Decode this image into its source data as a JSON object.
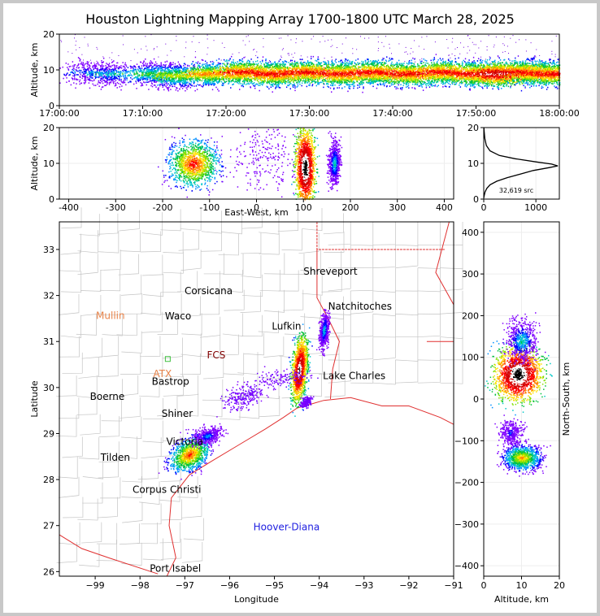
{
  "title": "Houston Lightning Mapping Array 1700-1800 UTC March 28, 2025",
  "source_count_label": "32,619 src",
  "chart_data": [
    {
      "panel": "time-altitude",
      "type": "scatter",
      "xlabel": "",
      "ylabel": "Altitude, km",
      "x_ticks": [
        "17:00:00",
        "17:10:00",
        "17:20:00",
        "17:30:00",
        "17:40:00",
        "17:50:00",
        "18:00:00"
      ],
      "xlim": [
        "17:00:00",
        "18:00:00"
      ],
      "ylim": [
        0,
        20
      ],
      "y_ticks": [
        0,
        10,
        20
      ],
      "density": [
        {
          "t_min": 3,
          "alt": 9.5,
          "w": 1.0
        },
        {
          "t_min": 6,
          "alt": 9,
          "w": 1.5
        },
        {
          "t_min": 11,
          "alt": 9,
          "w": 2
        },
        {
          "t_min": 14,
          "alt": 8.5,
          "w": 2.5
        },
        {
          "t_min": 18,
          "alt": 9,
          "w": 3
        },
        {
          "t_min": 22,
          "alt": 9.5,
          "w": 3.5
        },
        {
          "t_min": 26,
          "alt": 9,
          "w": 3.5
        },
        {
          "t_min": 30,
          "alt": 9.5,
          "w": 3.5
        },
        {
          "t_min": 34,
          "alt": 9,
          "w": 3.5
        },
        {
          "t_min": 38,
          "alt": 9.5,
          "w": 3.5
        },
        {
          "t_min": 42,
          "alt": 9,
          "w": 3.5
        },
        {
          "t_min": 46,
          "alt": 9.5,
          "w": 3.5
        },
        {
          "t_min": 50,
          "alt": 9,
          "w": 3.5
        },
        {
          "t_min": 53,
          "alt": 9,
          "w": 4
        },
        {
          "t_min": 56,
          "alt": 9.5,
          "w": 3.5
        },
        {
          "t_min": 59,
          "alt": 9,
          "w": 3.5
        }
      ]
    },
    {
      "panel": "east-west-altitude",
      "type": "scatter",
      "xlabel": "East-West, km",
      "ylabel": "Altitude, km",
      "xlim": [
        -420,
        420
      ],
      "ylim": [
        0,
        20
      ],
      "x_ticks": [
        -400,
        -300,
        -200,
        -100,
        0,
        100,
        200,
        300,
        400
      ],
      "y_ticks": [
        0,
        10,
        20
      ],
      "clusters": [
        {
          "x": -135,
          "alt": 10,
          "sx": 25,
          "salt": 3,
          "w": 3
        },
        {
          "x": 15,
          "alt": 12,
          "sx": 45,
          "salt": 5,
          "w": 0.6
        },
        {
          "x": 103,
          "alt": 9,
          "sx": 10,
          "salt": 5,
          "w": 4
        },
        {
          "x": 165,
          "alt": 10,
          "sx": 6,
          "salt": 3,
          "w": 1.5
        }
      ]
    },
    {
      "panel": "altitude-histogram",
      "type": "line",
      "xlim": [
        0,
        1450
      ],
      "ylim": [
        0,
        20
      ],
      "x_ticks": [
        0,
        1000
      ],
      "y_ticks": [
        0,
        10,
        20
      ],
      "points": [
        [
          0,
          0.3
        ],
        [
          10,
          1
        ],
        [
          25,
          2
        ],
        [
          60,
          3
        ],
        [
          120,
          4
        ],
        [
          250,
          5
        ],
        [
          450,
          6
        ],
        [
          700,
          7
        ],
        [
          950,
          8
        ],
        [
          1250,
          8.8
        ],
        [
          1420,
          9.3
        ],
        [
          1300,
          9.8
        ],
        [
          1000,
          10.4
        ],
        [
          600,
          11.3
        ],
        [
          300,
          12.2
        ],
        [
          120,
          13.5
        ],
        [
          50,
          15
        ],
        [
          20,
          17
        ],
        [
          8,
          19
        ],
        [
          3,
          20
        ]
      ]
    },
    {
      "panel": "map",
      "type": "scatter",
      "xlabel": "Longitude",
      "ylabel": "Latitude",
      "xlim": [
        -99.8,
        -91.0
      ],
      "ylim": [
        25.9,
        33.6
      ],
      "x_ticks": [
        -99,
        -98,
        -97,
        -96,
        -95,
        -94,
        -93,
        -92,
        -91
      ],
      "y_ticks": [
        26,
        27,
        28,
        29,
        30,
        31,
        32,
        33
      ],
      "cities": [
        {
          "name": "Shreveport",
          "lon": -93.75,
          "lat": 32.52,
          "color": "#000000"
        },
        {
          "name": "Corsicana",
          "lon": -96.47,
          "lat": 32.1,
          "color": "#000000"
        },
        {
          "name": "Natchitoches",
          "lon": -93.09,
          "lat": 31.76,
          "color": "#000000"
        },
        {
          "name": "Mullin",
          "lon": -98.66,
          "lat": 31.56,
          "color": "#e8844a"
        },
        {
          "name": "Waco",
          "lon": -97.15,
          "lat": 31.55,
          "color": "#000000"
        },
        {
          "name": "Lufkin",
          "lon": -94.73,
          "lat": 31.33,
          "color": "#000000"
        },
        {
          "name": "ATX",
          "lon": -97.5,
          "lat": 30.3,
          "color": "#e8844a"
        },
        {
          "name": "Bastrop",
          "lon": -97.32,
          "lat": 30.13,
          "color": "#000000"
        },
        {
          "name": "Lake Charles",
          "lon": -93.22,
          "lat": 30.25,
          "color": "#000000"
        },
        {
          "name": "Boerne",
          "lon": -98.73,
          "lat": 29.8,
          "color": "#000000"
        },
        {
          "name": "Shiner",
          "lon": -97.17,
          "lat": 29.43,
          "color": "#000000"
        },
        {
          "name": "Victoria",
          "lon": -97.0,
          "lat": 28.82,
          "color": "#000000"
        },
        {
          "name": "Tilden",
          "lon": -98.55,
          "lat": 28.48,
          "color": "#000000"
        },
        {
          "name": "Corpus Christi",
          "lon": -97.4,
          "lat": 27.78,
          "color": "#000000"
        },
        {
          "name": "Hoover-Diana",
          "lon": -94.73,
          "lat": 26.97,
          "color": "#2020e0"
        },
        {
          "name": "Port Isabel",
          "lon": -97.21,
          "lat": 26.07,
          "color": "#000000"
        },
        {
          "name": "FCS",
          "lon": -96.3,
          "lat": 30.7,
          "color": "#800000"
        }
      ],
      "clusters": [
        {
          "lon": -94.45,
          "lat": 30.4,
          "slon": 0.08,
          "slat": 0.35,
          "w": 4
        },
        {
          "lon": -93.9,
          "lat": 31.25,
          "slon": 0.05,
          "slat": 0.2,
          "w": 1.5
        },
        {
          "lon": -96.9,
          "lat": 28.55,
          "slon": 0.2,
          "slat": 0.18,
          "w": 3
        },
        {
          "lon": -96.5,
          "lat": 28.95,
          "slon": 0.15,
          "slat": 0.1,
          "w": 1.2
        },
        {
          "lon": -95.7,
          "lat": 29.8,
          "slon": 0.2,
          "slat": 0.15,
          "w": 0.7
        },
        {
          "lon": -94.9,
          "lat": 30.2,
          "slon": 0.3,
          "slat": 0.1,
          "w": 0.4
        },
        {
          "lon": -94.3,
          "lat": 29.7,
          "slon": 0.05,
          "slat": 0.05,
          "w": 0.6
        }
      ]
    },
    {
      "panel": "altitude-north-south",
      "type": "scatter",
      "xlabel": "Altitude, km",
      "ylabel": "North-South, km",
      "xlim": [
        0,
        20
      ],
      "ylim": [
        -425,
        425
      ],
      "x_ticks": [
        0,
        10,
        20
      ],
      "y_ticks": [
        -400,
        -300,
        -200,
        -100,
        0,
        100,
        200,
        300,
        400
      ],
      "clusters": [
        {
          "alt": 9,
          "y": 60,
          "salt": 3,
          "sy": 30,
          "w": 4
        },
        {
          "alt": 10,
          "y": 140,
          "salt": 2,
          "sy": 25,
          "w": 1.5
        },
        {
          "alt": 10,
          "y": -140,
          "salt": 2.5,
          "sy": 15,
          "w": 2.5
        },
        {
          "alt": 7,
          "y": -80,
          "salt": 1.5,
          "sy": 15,
          "w": 0.8
        }
      ]
    }
  ]
}
